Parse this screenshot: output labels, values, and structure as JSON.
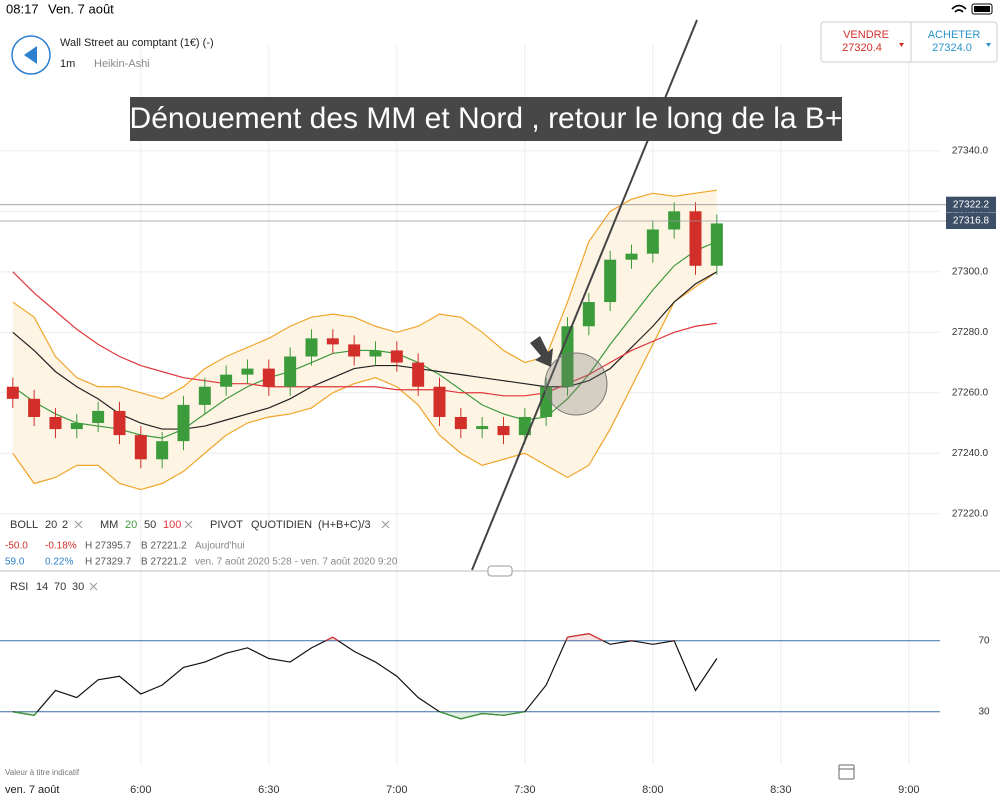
{
  "status_bar": {
    "time": "08:17",
    "date": "Ven. 7 août"
  },
  "header": {
    "instrument": "Wall Street au comptant (1€) (-)",
    "interval": "1m",
    "chart_style": "Heikin-Ashi"
  },
  "trade": {
    "sell_label": "VENDRE",
    "sell_price": "27320.4",
    "buy_label": "ACHETER",
    "buy_price": "27324.0"
  },
  "annotation": "Dénouement des MM et Nord , retour le long de la B+",
  "indicators": {
    "boll": [
      "BOLL",
      "20",
      "2"
    ],
    "mm": [
      "MM",
      "20",
      "50",
      "100"
    ],
    "pivot": [
      "PIVOT",
      "QUOTIDIEN",
      "(H+B+C)/3"
    ],
    "row1": [
      "-50.0",
      "-0.18%",
      "H 27395.7",
      "B 27221.2",
      "Aujourd'hui"
    ],
    "row2": [
      "59.0",
      "0.22%",
      "H 27329.7",
      "B 27221.2",
      "ven. 7 août 2020 5:28 - ven. 7 août 2020 9:20"
    ],
    "rsi": [
      "RSI",
      "14",
      "70",
      "30"
    ]
  },
  "footer": {
    "note": "Valeur à titre indicatif",
    "date": "ven. 7 août"
  },
  "chart_data": [
    {
      "type": "candlestick",
      "x": [
        330,
        335,
        340,
        345,
        350,
        355,
        360,
        365,
        370,
        375,
        380,
        385,
        390,
        395,
        400,
        405,
        410,
        415,
        420,
        425,
        430,
        435,
        440,
        445,
        450,
        455,
        460,
        465,
        470,
        475,
        480,
        485,
        490,
        495
      ],
      "open": [
        27262,
        27258,
        27252,
        27248,
        27250,
        27254,
        27246,
        27238,
        27244,
        27256,
        27262,
        27266,
        27268,
        27262,
        27272,
        27278,
        27276,
        27272,
        27274,
        27270,
        27262,
        27252,
        27248,
        27249,
        27246,
        27252,
        27262,
        27282,
        27290,
        27304,
        27306,
        27314,
        27320,
        27302
      ],
      "high": [
        27265,
        27261,
        27255,
        27253,
        27257,
        27257,
        27249,
        27247,
        27259,
        27265,
        27269,
        27271,
        27271,
        27275,
        27281,
        27281,
        27279,
        27277,
        27277,
        27273,
        27265,
        27255,
        27252,
        27252,
        27255,
        27265,
        27285,
        27293,
        27307,
        27309,
        27317,
        27323,
        27323,
        27319
      ],
      "low": [
        27255,
        27249,
        27245,
        27245,
        27247,
        27243,
        27235,
        27235,
        27241,
        27253,
        27259,
        27263,
        27259,
        27259,
        27269,
        27273,
        27269,
        27269,
        27267,
        27259,
        27249,
        27245,
        27245,
        27243,
        27243,
        27249,
        27259,
        27279,
        27287,
        27301,
        27303,
        27311,
        27299,
        27299
      ],
      "close": [
        27258,
        27252,
        27248,
        27250,
        27254,
        27246,
        27238,
        27244,
        27256,
        27262,
        27266,
        27268,
        27262,
        27272,
        27278,
        27276,
        27272,
        27274,
        27270,
        27262,
        27252,
        27248,
        27249,
        27246,
        27252,
        27262,
        27282,
        27290,
        27304,
        27306,
        27314,
        27320,
        27302,
        27316
      ],
      "up_color": "#3c9c3c",
      "down_color": "#d22f2a",
      "bollinger": {
        "color": "#f0a52a",
        "fill": "#fdf4e4",
        "upper": [
          27290,
          27285,
          27272,
          27265,
          27262,
          27262,
          27260,
          27258,
          27262,
          27268,
          27272,
          27275,
          27278,
          27282,
          27285,
          27286,
          27285,
          27282,
          27280,
          27282,
          27286,
          27285,
          27280,
          27274,
          27270,
          27272,
          27290,
          27310,
          27320,
          27324,
          27326,
          27325,
          27326,
          27327
        ],
        "lower": [
          27240,
          27230,
          27232,
          27236,
          27236,
          27230,
          27228,
          27230,
          27234,
          27240,
          27246,
          27250,
          27252,
          27253,
          27255,
          27260,
          27263,
          27265,
          27262,
          27256,
          27246,
          27240,
          27236,
          27238,
          27240,
          27236,
          27232,
          27236,
          27248,
          27262,
          27276,
          27290,
          27295,
          27300
        ]
      },
      "moving_averages": [
        {
          "color": "#3f9a3f",
          "values": [
            27262,
            27257,
            27253,
            27250,
            27249,
            27248,
            27246,
            27245,
            27248,
            27253,
            27258,
            27262,
            27265,
            27267,
            27270,
            27273,
            27274,
            27274,
            27273,
            27270,
            27266,
            27261,
            27256,
            27253,
            27251,
            27252,
            27258,
            27266,
            27276,
            27285,
            27294,
            27302,
            27307,
            27310
          ]
        },
        {
          "color": "#222222",
          "values": [
            27280,
            27274,
            27267,
            27262,
            27258,
            27253,
            27250,
            27248,
            27248,
            27249,
            27251,
            27253,
            27255,
            27258,
            27262,
            27265,
            27268,
            27269,
            27269,
            27268,
            27267,
            27266,
            27265,
            27264,
            27263,
            27262,
            27262,
            27264,
            27268,
            27275,
            27282,
            27290,
            27296,
            27300
          ]
        },
        {
          "color": "#e0363a",
          "values": [
            27300,
            27293,
            27287,
            27281,
            27276,
            27272,
            27269,
            27267,
            27265,
            27264,
            27263,
            27263,
            27262,
            27262,
            27262,
            27262,
            27262,
            27262,
            27261,
            27261,
            27261,
            27260,
            27260,
            27259,
            27259,
            27260,
            27263,
            27266,
            27270,
            27274,
            27277,
            27280,
            27282,
            27283
          ]
        }
      ],
      "price_tags": [
        27322.2,
        27316.8
      ],
      "xlim": [
        327,
        547.3
      ],
      "xticks": [
        {
          "value": 360,
          "label": "6:00"
        },
        {
          "value": 390,
          "label": "6:30"
        },
        {
          "value": 420,
          "label": "7:00"
        },
        {
          "value": 450,
          "label": "7:30"
        },
        {
          "value": 480,
          "label": "8:00"
        },
        {
          "value": 510,
          "label": "8:30"
        },
        {
          "value": 540,
          "label": "9:00"
        }
      ],
      "ylim": [
        27201.4,
        27375
      ],
      "yticks": [
        {
          "value": 27220,
          "label": "27220.0"
        },
        {
          "value": 27240,
          "label": "27240.0"
        },
        {
          "value": 27260,
          "label": "27260.0"
        },
        {
          "value": 27280,
          "label": "27280.0"
        },
        {
          "value": 27300,
          "label": "27300.0"
        },
        {
          "value": 27320,
          "label": "27320.0"
        },
        {
          "value": 27340,
          "label": "27340.0"
        }
      ],
      "grid": true
    },
    {
      "type": "line",
      "x": [
        330,
        335,
        340,
        345,
        350,
        355,
        360,
        365,
        370,
        375,
        380,
        385,
        390,
        395,
        400,
        405,
        410,
        415,
        420,
        425,
        430,
        435,
        440,
        445,
        450,
        455,
        460,
        465,
        470,
        475,
        480,
        485,
        490,
        495
      ],
      "values": [
        30,
        28,
        42,
        38,
        48,
        50,
        40,
        45,
        55,
        58,
        63,
        66,
        60,
        58,
        66,
        72,
        64,
        58,
        50,
        38,
        30,
        26,
        29,
        28,
        30,
        45,
        72,
        74,
        68,
        70,
        68,
        70,
        42,
        60
      ],
      "color": "#111111",
      "above_color": "#e0363a",
      "below_color": "#3c9c3c",
      "xlim": [
        327,
        547.3
      ],
      "ylim": [
        0,
        101.4
      ],
      "yticks": [
        30,
        70
      ],
      "threshold_color": "#3b6fa8"
    }
  ]
}
